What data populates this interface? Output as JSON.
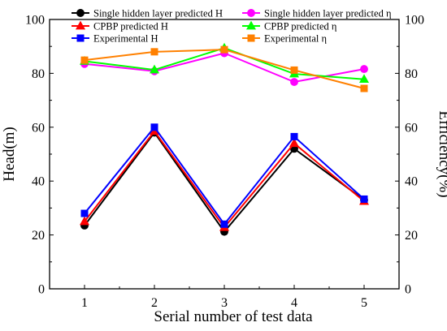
{
  "chart_data": {
    "type": "line",
    "x": [
      1,
      2,
      3,
      4,
      5
    ],
    "xlabel": "Serial number of test data",
    "ylabel_left": "Head(m)",
    "ylabel_right": "Efficiency(%)",
    "xlim": [
      0.5,
      5.5
    ],
    "ylim_left": [
      0,
      100
    ],
    "ylim_right": [
      0,
      100
    ],
    "x_ticks": [
      "1",
      "2",
      "3",
      "4",
      "5"
    ],
    "y_ticks_left": [
      "0",
      "20",
      "40",
      "60",
      "80",
      "100"
    ],
    "y_ticks_right": [
      "0",
      "20",
      "40",
      "60",
      "80",
      "100"
    ],
    "grid": false,
    "legend_position": "top",
    "series": [
      {
        "name": "Single hidden layer predicted H",
        "axis": "left",
        "color": "#000000",
        "marker": "circle",
        "values": [
          23.5,
          58.0,
          21.2,
          52.0,
          33.0
        ]
      },
      {
        "name": "CPBP predicted H",
        "axis": "left",
        "color": "#ff0000",
        "marker": "triangle",
        "values": [
          25.0,
          58.5,
          22.8,
          54.0,
          32.5
        ]
      },
      {
        "name": "Experimental H",
        "axis": "left",
        "color": "#0000ff",
        "marker": "square",
        "values": [
          28.0,
          60.0,
          24.0,
          56.5,
          33.3
        ]
      },
      {
        "name": "Single hidden layer predicted η",
        "axis": "right",
        "color": "#ff00ff",
        "marker": "circle",
        "values": [
          83.5,
          80.8,
          87.5,
          76.8,
          81.6
        ]
      },
      {
        "name": "CPBP predicted η",
        "axis": "right",
        "color": "#00ff00",
        "marker": "triangle",
        "values": [
          84.5,
          81.3,
          89.4,
          79.8,
          77.8
        ]
      },
      {
        "name": "Experimental η",
        "axis": "right",
        "color": "#ff8000",
        "marker": "square",
        "values": [
          84.9,
          88.0,
          88.8,
          81.2,
          74.4
        ]
      }
    ]
  }
}
